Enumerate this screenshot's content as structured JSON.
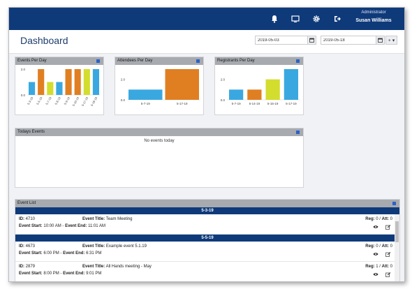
{
  "topbar": {
    "icons": [
      "bell-icon",
      "monitor-icon",
      "gear-icon",
      "logout-icon"
    ],
    "role": "Administrator",
    "user_name": "Susan Williams",
    "bg": "#0f3a7a"
  },
  "header": {
    "title": "Dashboard",
    "date_from": "2019-05-03",
    "date_to": "2019-05-18",
    "add_label": "+ ▾"
  },
  "cards": {
    "events_per_day": "Events Per Day",
    "attendees_per_day": "Attendees Per Day",
    "registrants_per_day": "Registrants Per Day",
    "todays_events": "Todays Events",
    "no_events": "No events today"
  },
  "chart_data": [
    {
      "type": "bar",
      "title": "Events Per Day",
      "categories": [
        "5-3-19",
        "5-5-19",
        "5-7-19",
        "5-8-19",
        "5-9-19",
        "5-10-19",
        "5-17-19",
        "5-18-19"
      ],
      "values": [
        1.0,
        2.0,
        1.0,
        1.0,
        2.0,
        2.0,
        2.0,
        2.0
      ],
      "colors": [
        "#3aa8e0",
        "#e07f22",
        "#d3dd2e",
        "#3aa8e0",
        "#e07f22",
        "#e07f22",
        "#d3dd2e",
        "#3aa8e0"
      ],
      "ylim": [
        0,
        2
      ],
      "yticks": [
        "0.0",
        "2.0"
      ]
    },
    {
      "type": "bar",
      "title": "Attendees Per Day",
      "categories": [
        "5-7-19",
        "5-17-19"
      ],
      "values": [
        1.0,
        3.0
      ],
      "colors": [
        "#3aa8e0",
        "#e07f22"
      ],
      "ylim": [
        0,
        3
      ],
      "yticks": [
        "0.0",
        "2.0"
      ]
    },
    {
      "type": "bar",
      "title": "Registrants Per Day",
      "categories": [
        "5-7-19",
        "5-14-19",
        "5-15-19",
        "5-17-19"
      ],
      "values": [
        1.0,
        1.0,
        2.0,
        3.0
      ],
      "colors": [
        "#3aa8e0",
        "#e07f22",
        "#d3dd2e",
        "#3aa8e0"
      ],
      "ylim": [
        0,
        3
      ],
      "yticks": [
        "0.0",
        "2.0"
      ]
    }
  ],
  "event_list": {
    "title": "Event List",
    "groups": [
      {
        "date": "5-3-19",
        "events": [
          {
            "id_label": "ID:",
            "id": "4710",
            "title_label": "Event Title:",
            "title": "Team Meeting",
            "start_label": "Event Start:",
            "start": "10:00 AM",
            "sep": " - ",
            "end_label": "Event End:",
            "end": "11:01 AM",
            "reg_label": "Reg:",
            "reg": "0",
            "att_label": "Att:",
            "att": "0"
          }
        ]
      },
      {
        "date": "5-5-19",
        "events": [
          {
            "id_label": "ID:",
            "id": "4673",
            "title_label": "Event Title:",
            "title": "Example event 5.1.19",
            "start_label": "Event Start:",
            "start": "6:00 PM",
            "sep": " - ",
            "end_label": "Event End:",
            "end": "6:31 PM",
            "reg_label": "Reg:",
            "reg": "0",
            "att_label": "Att:",
            "att": "0"
          },
          {
            "id_label": "ID:",
            "id": "2879",
            "title_label": "Event Title:",
            "title": "All Hands meeting - May",
            "start_label": "Event Start:",
            "start": "8:00 PM",
            "sep": " - ",
            "end_label": "Event End:",
            "end": "9:01 PM",
            "reg_label": "Reg:",
            "reg": "1",
            "att_label": "Att:",
            "att": "0"
          }
        ]
      }
    ]
  }
}
